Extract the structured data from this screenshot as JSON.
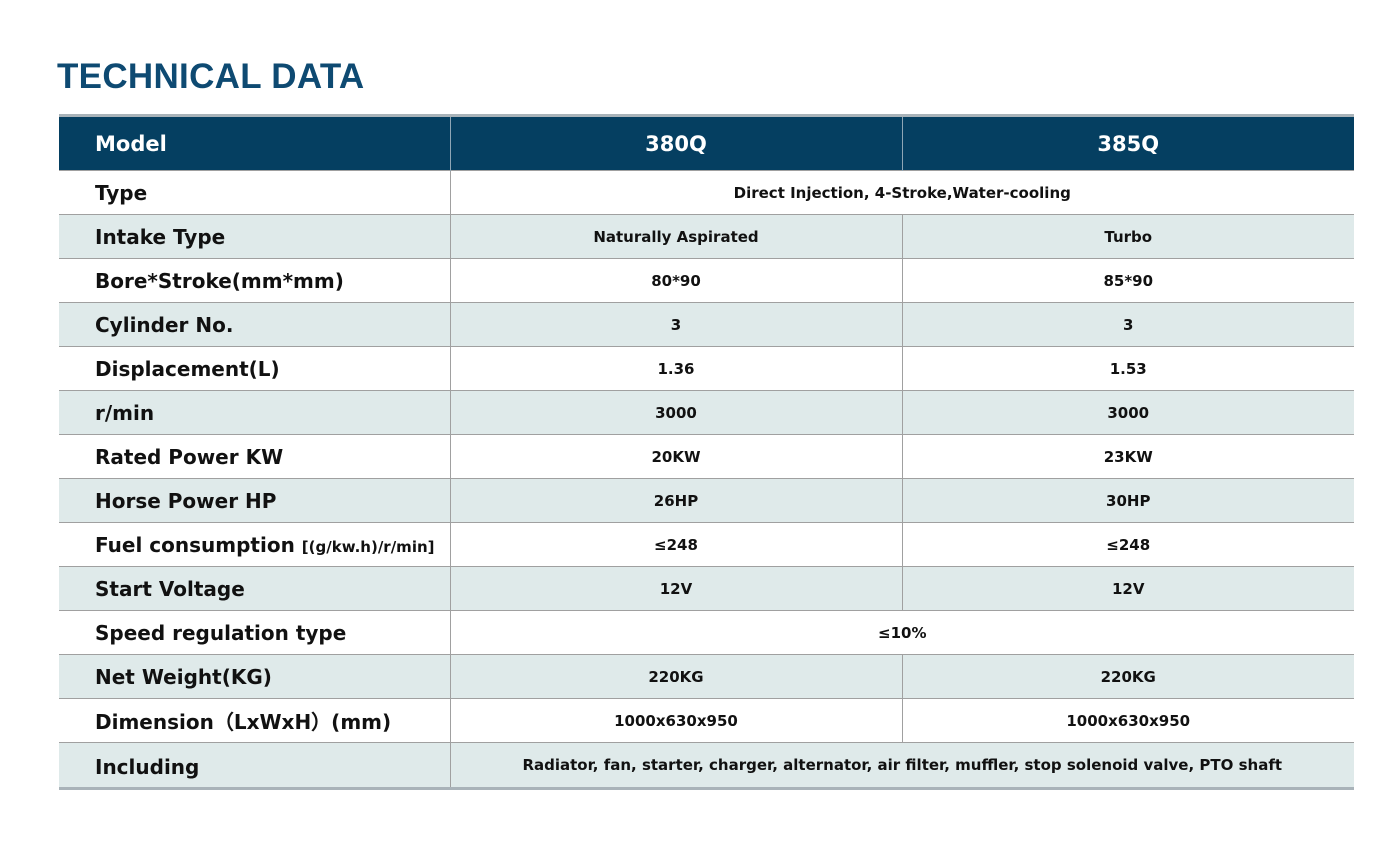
{
  "title": "TECHNICAL DATA",
  "columns": [
    "Model",
    "380Q",
    "385Q"
  ],
  "rows": [
    {
      "label": "Type",
      "merged": "Direct Injection, 4-Stroke,Water-cooling"
    },
    {
      "label": "Intake Type",
      "a": "Naturally Aspirated",
      "b": "Turbo"
    },
    {
      "label": "Bore*Stroke(mm*mm)",
      "a": "80*90",
      "b": "85*90"
    },
    {
      "label": "Cylinder No.",
      "a": "3",
      "b": "3"
    },
    {
      "label": "Displacement(L)",
      "a": "1.36",
      "b": "1.53"
    },
    {
      "label": "r/min",
      "a": "3000",
      "b": "3000"
    },
    {
      "label": "Rated Power KW",
      "a": "20KW",
      "b": "23KW"
    },
    {
      "label": "Horse Power HP",
      "a": "26HP",
      "b": "30HP"
    },
    {
      "label": "Fuel consumption",
      "label_small": "[(g/kw.h)/r/min]",
      "a": "≤248",
      "b": "≤248"
    },
    {
      "label": "Start Voltage",
      "a": "12V",
      "b": "12V"
    },
    {
      "label": "Speed regulation type",
      "merged": "≤10%"
    },
    {
      "label": "Net Weight(KG)",
      "a": "220KG",
      "b": "220KG"
    },
    {
      "label": "Dimension（LxWxH）(mm)",
      "a": "1000x630x950",
      "b": "1000x630x950"
    },
    {
      "label": "Including",
      "merged": "Radiator, fan, starter, charger, alternator, air filter, muffler, stop solenoid valve, PTO shaft"
    }
  ],
  "colors": {
    "title": "#0e4a72",
    "header_bg": "#053f61",
    "header_text": "#ffffff",
    "row_alt_bg": "#dfeaea",
    "border": "#a0a0a0"
  }
}
